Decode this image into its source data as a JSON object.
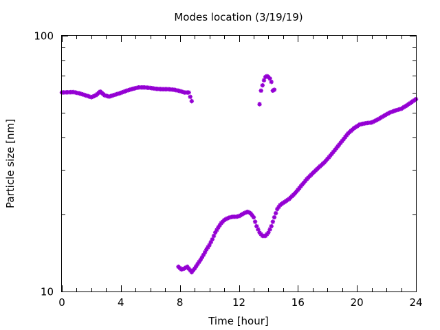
{
  "chart_data": {
    "type": "scatter",
    "title": "Modes location (3/19/19)",
    "xlabel": "Time [hour]",
    "ylabel": "Particle size [nm]",
    "xlim": [
      0,
      24
    ],
    "ylim": [
      10,
      100
    ],
    "yscale": "log",
    "x_ticks": [
      0,
      4,
      8,
      12,
      16,
      20,
      24
    ],
    "x_tick_labels": [
      "0",
      "4",
      "8",
      "12",
      "16",
      "20",
      "24"
    ],
    "y_tick_labels": [
      "10",
      "100"
    ],
    "y_minor_ticks": [
      20,
      30,
      40,
      50,
      60,
      70,
      80,
      90
    ],
    "grid": false,
    "marker": "star",
    "color": "#9400d3",
    "series": [
      {
        "points": [
          [
            0.0,
            60.0
          ],
          [
            0.4,
            60.1
          ],
          [
            0.8,
            60.2
          ],
          [
            1.2,
            59.5
          ],
          [
            1.6,
            58.5
          ],
          [
            2.0,
            57.5
          ],
          [
            2.3,
            58.5
          ],
          [
            2.6,
            60.5
          ],
          [
            2.9,
            58.5
          ],
          [
            3.2,
            57.8
          ],
          [
            3.6,
            58.8
          ],
          [
            4.0,
            59.8
          ],
          [
            4.4,
            61.0
          ],
          [
            4.8,
            62.0
          ],
          [
            5.2,
            62.8
          ],
          [
            5.6,
            62.8
          ],
          [
            6.0,
            62.5
          ],
          [
            6.4,
            62.0
          ],
          [
            6.8,
            61.8
          ],
          [
            7.2,
            61.8
          ],
          [
            7.6,
            61.5
          ],
          [
            8.0,
            60.8
          ],
          [
            8.3,
            60.0
          ],
          [
            8.6,
            60.0
          ],
          [
            8.8,
            55.5
          ],
          [
            13.4,
            54.0
          ],
          [
            13.5,
            61.0
          ],
          [
            13.6,
            64.0
          ],
          [
            13.7,
            67.0
          ],
          [
            13.8,
            69.0
          ],
          [
            13.9,
            69.5
          ],
          [
            14.0,
            69.0
          ],
          [
            14.1,
            68.0
          ],
          [
            14.2,
            66.0
          ],
          [
            14.3,
            61.0
          ],
          [
            14.4,
            61.5
          ]
        ]
      },
      {
        "points": [
          [
            7.9,
            12.5
          ],
          [
            8.1,
            12.2
          ],
          [
            8.3,
            12.3
          ],
          [
            8.5,
            12.5
          ],
          [
            8.8,
            11.9
          ],
          [
            9.0,
            12.3
          ],
          [
            9.2,
            12.8
          ],
          [
            9.4,
            13.3
          ],
          [
            9.6,
            13.9
          ],
          [
            9.8,
            14.6
          ],
          [
            10.0,
            15.2
          ],
          [
            10.2,
            16.0
          ],
          [
            10.4,
            17.0
          ],
          [
            10.6,
            17.8
          ],
          [
            10.8,
            18.5
          ],
          [
            11.0,
            19.0
          ],
          [
            11.2,
            19.3
          ],
          [
            11.4,
            19.5
          ],
          [
            11.6,
            19.6
          ],
          [
            11.8,
            19.6
          ],
          [
            12.0,
            19.7
          ],
          [
            12.2,
            20.0
          ],
          [
            12.4,
            20.3
          ],
          [
            12.6,
            20.5
          ],
          [
            12.8,
            20.2
          ],
          [
            13.0,
            19.5
          ],
          [
            13.2,
            18.0
          ],
          [
            13.4,
            17.0
          ],
          [
            13.6,
            16.5
          ],
          [
            13.8,
            16.5
          ],
          [
            14.0,
            17.0
          ],
          [
            14.2,
            18.0
          ],
          [
            14.4,
            19.5
          ],
          [
            14.6,
            21.0
          ],
          [
            14.8,
            21.8
          ],
          [
            15.0,
            22.2
          ],
          [
            15.4,
            23.0
          ],
          [
            15.8,
            24.2
          ],
          [
            16.2,
            25.8
          ],
          [
            16.6,
            27.5
          ],
          [
            17.0,
            29.0
          ],
          [
            17.4,
            30.5
          ],
          [
            17.8,
            32.0
          ],
          [
            18.2,
            34.0
          ],
          [
            18.6,
            36.3
          ],
          [
            19.0,
            38.8
          ],
          [
            19.4,
            41.5
          ],
          [
            19.8,
            43.5
          ],
          [
            20.2,
            45.0
          ],
          [
            20.6,
            45.5
          ],
          [
            21.0,
            45.8
          ],
          [
            21.4,
            47.0
          ],
          [
            21.8,
            48.5
          ],
          [
            22.2,
            50.0
          ],
          [
            22.6,
            51.0
          ],
          [
            23.0,
            51.8
          ],
          [
            23.4,
            53.5
          ],
          [
            23.8,
            55.5
          ],
          [
            24.0,
            56.5
          ]
        ]
      }
    ]
  }
}
